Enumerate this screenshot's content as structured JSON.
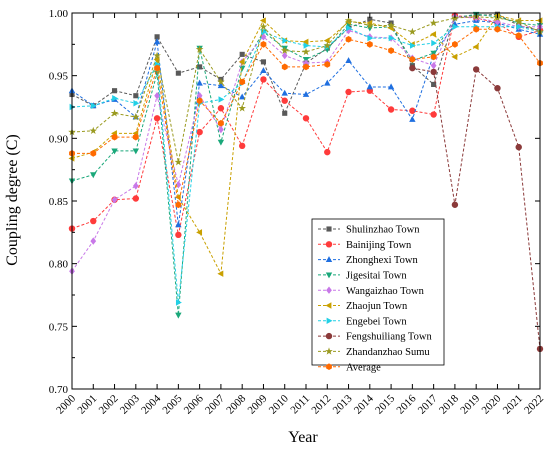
{
  "chart_data": {
    "type": "line",
    "title": "",
    "xlabel": "Year",
    "ylabel": "Coupling degree (C)",
    "x": [
      "2000",
      "2001",
      "2002",
      "2003",
      "2004",
      "2005",
      "2006",
      "2007",
      "2008",
      "2009",
      "2010",
      "2011",
      "2012",
      "2013",
      "2014",
      "2015",
      "2016",
      "2017",
      "2018",
      "2019",
      "2020",
      "2021",
      "2022"
    ],
    "ylim": [
      0.7,
      1.0
    ],
    "yticks": [
      "0.70",
      "0.75",
      "0.80",
      "0.85",
      "0.90",
      "0.95",
      "1.00"
    ],
    "legend_position": "bottom-right",
    "grid": false,
    "series": [
      {
        "name": "Shulinzhao Town",
        "color": "#595959",
        "marker": "square",
        "values": [
          0.935,
          0.926,
          0.938,
          0.934,
          0.981,
          0.952,
          0.957,
          0.947,
          0.967,
          0.961,
          0.92,
          0.96,
          0.972,
          0.988,
          0.995,
          0.992,
          0.958,
          0.943,
          0.997,
          0.998,
          0.999,
          0.99,
          0.986
        ]
      },
      {
        "name": "Bainijing Town",
        "color": "#ff3b3b",
        "marker": "circle",
        "values": [
          0.828,
          0.834,
          0.851,
          0.852,
          0.916,
          0.823,
          0.905,
          0.924,
          0.894,
          0.947,
          0.93,
          0.916,
          0.889,
          0.937,
          0.938,
          0.923,
          0.922,
          0.919,
          0.998,
          0.996,
          0.992,
          0.981,
          0.986
        ]
      },
      {
        "name": "Zhonghexi Town",
        "color": "#1f6fe0",
        "marker": "triangle-up",
        "values": [
          0.938,
          0.926,
          0.931,
          0.917,
          0.977,
          0.831,
          0.944,
          0.942,
          0.933,
          0.954,
          0.936,
          0.935,
          0.944,
          0.962,
          0.941,
          0.941,
          0.915,
          0.967,
          0.991,
          0.994,
          0.992,
          0.987,
          0.983
        ]
      },
      {
        "name": "Jigesitai Town",
        "color": "#1aa87a",
        "marker": "triangle-down",
        "values": [
          0.866,
          0.871,
          0.89,
          0.89,
          0.952,
          0.759,
          0.972,
          0.897,
          0.956,
          0.985,
          0.972,
          0.963,
          0.971,
          0.991,
          0.988,
          0.989,
          0.962,
          0.968,
          0.996,
          0.999,
          0.997,
          0.992,
          0.99
        ]
      },
      {
        "name": "Wangaizhao Town",
        "color": "#c878e8",
        "marker": "diamond",
        "values": [
          0.794,
          0.818,
          0.851,
          0.862,
          0.934,
          0.863,
          0.934,
          0.907,
          0.961,
          0.981,
          0.966,
          0.96,
          0.961,
          0.986,
          0.981,
          0.98,
          0.964,
          0.958,
          0.997,
          0.996,
          0.993,
          0.989,
          0.989
        ]
      },
      {
        "name": "Zhaojun Town",
        "color": "#c9a000",
        "marker": "triangle-left",
        "values": [
          0.884,
          0.889,
          0.904,
          0.904,
          0.963,
          0.853,
          0.825,
          0.792,
          0.961,
          0.994,
          0.978,
          0.977,
          0.978,
          0.993,
          0.992,
          0.988,
          0.975,
          0.983,
          0.965,
          0.973,
          0.998,
          0.994,
          0.994
        ]
      },
      {
        "name": "Engebei Town",
        "color": "#22d0e6",
        "marker": "triangle-right",
        "values": [
          0.925,
          0.926,
          0.932,
          0.928,
          0.959,
          0.769,
          0.928,
          0.931,
          0.944,
          0.985,
          0.978,
          0.974,
          0.973,
          0.988,
          0.98,
          0.98,
          0.974,
          0.976,
          0.989,
          0.989,
          0.989,
          0.989,
          0.985
        ]
      },
      {
        "name": "Fengshuiliang Town",
        "color": "#8b3a3a",
        "marker": "circle",
        "values": [
          null,
          null,
          null,
          null,
          null,
          null,
          null,
          null,
          null,
          null,
          null,
          null,
          null,
          null,
          null,
          null,
          0.956,
          0.953,
          0.847,
          0.955,
          0.94,
          0.893,
          0.732
        ]
      },
      {
        "name": "Zhandanzhao Sumu",
        "color": "#9a9a20",
        "marker": "star",
        "values": [
          0.905,
          0.906,
          0.92,
          0.917,
          0.966,
          0.881,
          0.971,
          0.945,
          0.924,
          0.989,
          0.97,
          0.969,
          0.974,
          0.994,
          0.99,
          0.99,
          0.985,
          0.992,
          0.996,
          0.997,
          0.996,
          0.993,
          0.985
        ]
      },
      {
        "name": "Average",
        "color": "#ff6a00",
        "marker": "hexagon",
        "values": [
          0.888,
          0.888,
          0.901,
          0.901,
          0.956,
          0.847,
          0.93,
          0.912,
          0.945,
          0.975,
          0.957,
          0.957,
          0.959,
          0.979,
          0.975,
          0.97,
          0.963,
          0.965,
          0.975,
          0.987,
          0.987,
          0.982,
          0.96
        ]
      }
    ]
  }
}
